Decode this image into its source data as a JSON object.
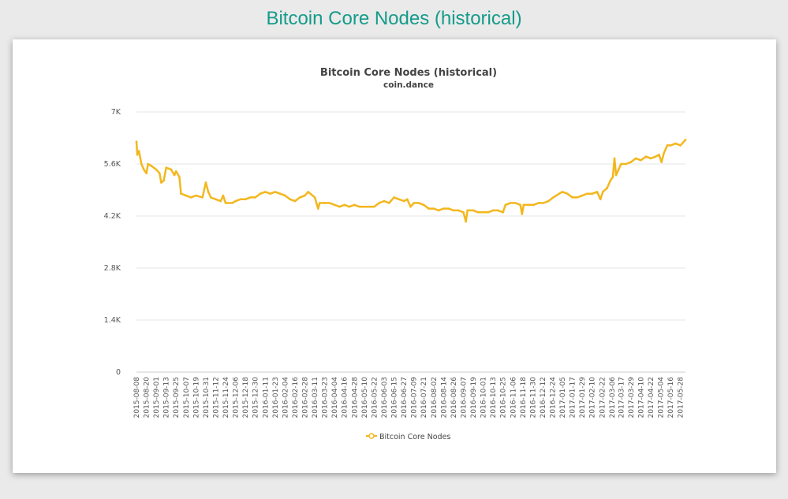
{
  "page": {
    "heading": "Bitcoin Core Nodes (historical)"
  },
  "colors": {
    "heading": "#159b8a",
    "series": "#f3b71e",
    "grid": "#e6e6e6",
    "axis_text": "#555555"
  },
  "chart_data": {
    "type": "line",
    "title": "Bitcoin Core Nodes (historical)",
    "subtitle": "coin.dance",
    "xlabel": "",
    "ylabel": "",
    "ylim": [
      0,
      7000
    ],
    "grid": true,
    "legend_position": "bottom-center",
    "y_ticks": [
      {
        "value": 0,
        "label": "0"
      },
      {
        "value": 1400,
        "label": "1.4K"
      },
      {
        "value": 2800,
        "label": "2.8K"
      },
      {
        "value": 4200,
        "label": "4.2K"
      },
      {
        "value": 5600,
        "label": "5.6K"
      },
      {
        "value": 7000,
        "label": "7K"
      }
    ],
    "x_tick_labels": [
      "2015-08-08",
      "2015-08-20",
      "2015-09-01",
      "2015-09-13",
      "2015-09-25",
      "2015-10-07",
      "2015-10-19",
      "2015-10-31",
      "2015-11-12",
      "2015-11-24",
      "2015-12-06",
      "2015-12-18",
      "2015-12-30",
      "2016-01-11",
      "2016-01-23",
      "2016-02-04",
      "2016-02-16",
      "2016-02-28",
      "2016-03-11",
      "2016-03-23",
      "2016-04-04",
      "2016-04-16",
      "2016-04-28",
      "2016-05-10",
      "2016-05-22",
      "2016-06-03",
      "2016-06-15",
      "2016-06-27",
      "2016-07-09",
      "2016-07-21",
      "2016-08-02",
      "2016-08-14",
      "2016-08-26",
      "2016-09-07",
      "2016-09-19",
      "2016-10-01",
      "2016-10-13",
      "2016-10-25",
      "2016-11-06",
      "2016-11-18",
      "2016-11-30",
      "2016-12-12",
      "2016-12-24",
      "2017-01-05",
      "2017-01-17",
      "2017-01-29",
      "2017-02-10",
      "2017-02-22",
      "2017-03-06",
      "2017-03-17",
      "2017-03-29",
      "2017-04-10",
      "2017-04-22",
      "2017-05-04",
      "2017-05-16",
      "2017-05-28"
    ],
    "series": [
      {
        "name": "Bitcoin Core Nodes",
        "color": "#f3b71e",
        "points": [
          {
            "x": "2015-08-08",
            "y": 6200
          },
          {
            "x": "2015-08-09",
            "y": 5850
          },
          {
            "x": "2015-08-11",
            "y": 5950
          },
          {
            "x": "2015-08-14",
            "y": 5600
          },
          {
            "x": "2015-08-17",
            "y": 5450
          },
          {
            "x": "2015-08-20",
            "y": 5350
          },
          {
            "x": "2015-08-22",
            "y": 5600
          },
          {
            "x": "2015-08-26",
            "y": 5550
          },
          {
            "x": "2015-09-01",
            "y": 5450
          },
          {
            "x": "2015-09-05",
            "y": 5350
          },
          {
            "x": "2015-09-07",
            "y": 5100
          },
          {
            "x": "2015-09-10",
            "y": 5150
          },
          {
            "x": "2015-09-13",
            "y": 5500
          },
          {
            "x": "2015-09-19",
            "y": 5450
          },
          {
            "x": "2015-09-23",
            "y": 5300
          },
          {
            "x": "2015-09-25",
            "y": 5400
          },
          {
            "x": "2015-09-29",
            "y": 5250
          },
          {
            "x": "2015-10-01",
            "y": 4800
          },
          {
            "x": "2015-10-07",
            "y": 4750
          },
          {
            "x": "2015-10-13",
            "y": 4700
          },
          {
            "x": "2015-10-19",
            "y": 4750
          },
          {
            "x": "2015-10-27",
            "y": 4700
          },
          {
            "x": "2015-10-31",
            "y": 5100
          },
          {
            "x": "2015-11-03",
            "y": 4850
          },
          {
            "x": "2015-11-06",
            "y": 4700
          },
          {
            "x": "2015-11-12",
            "y": 4650
          },
          {
            "x": "2015-11-18",
            "y": 4600
          },
          {
            "x": "2015-11-21",
            "y": 4750
          },
          {
            "x": "2015-11-24",
            "y": 4550
          },
          {
            "x": "2015-12-02",
            "y": 4550
          },
          {
            "x": "2015-12-06",
            "y": 4600
          },
          {
            "x": "2015-12-12",
            "y": 4650
          },
          {
            "x": "2015-12-18",
            "y": 4650
          },
          {
            "x": "2015-12-24",
            "y": 4700
          },
          {
            "x": "2015-12-30",
            "y": 4700
          },
          {
            "x": "2016-01-05",
            "y": 4800
          },
          {
            "x": "2016-01-11",
            "y": 4850
          },
          {
            "x": "2016-01-17",
            "y": 4800
          },
          {
            "x": "2016-01-23",
            "y": 4850
          },
          {
            "x": "2016-01-29",
            "y": 4800
          },
          {
            "x": "2016-02-04",
            "y": 4750
          },
          {
            "x": "2016-02-10",
            "y": 4650
          },
          {
            "x": "2016-02-16",
            "y": 4600
          },
          {
            "x": "2016-02-22",
            "y": 4700
          },
          {
            "x": "2016-02-28",
            "y": 4750
          },
          {
            "x": "2016-03-03",
            "y": 4850
          },
          {
            "x": "2016-03-11",
            "y": 4700
          },
          {
            "x": "2016-03-15",
            "y": 4400
          },
          {
            "x": "2016-03-17",
            "y": 4550
          },
          {
            "x": "2016-03-23",
            "y": 4550
          },
          {
            "x": "2016-03-29",
            "y": 4550
          },
          {
            "x": "2016-04-04",
            "y": 4500
          },
          {
            "x": "2016-04-10",
            "y": 4450
          },
          {
            "x": "2016-04-16",
            "y": 4500
          },
          {
            "x": "2016-04-22",
            "y": 4450
          },
          {
            "x": "2016-04-28",
            "y": 4500
          },
          {
            "x": "2016-05-04",
            "y": 4450
          },
          {
            "x": "2016-05-10",
            "y": 4450
          },
          {
            "x": "2016-05-16",
            "y": 4450
          },
          {
            "x": "2016-05-22",
            "y": 4450
          },
          {
            "x": "2016-05-28",
            "y": 4550
          },
          {
            "x": "2016-06-03",
            "y": 4600
          },
          {
            "x": "2016-06-09",
            "y": 4550
          },
          {
            "x": "2016-06-15",
            "y": 4700
          },
          {
            "x": "2016-06-21",
            "y": 4650
          },
          {
            "x": "2016-06-27",
            "y": 4600
          },
          {
            "x": "2016-07-01",
            "y": 4650
          },
          {
            "x": "2016-07-05",
            "y": 4450
          },
          {
            "x": "2016-07-09",
            "y": 4550
          },
          {
            "x": "2016-07-15",
            "y": 4550
          },
          {
            "x": "2016-07-21",
            "y": 4500
          },
          {
            "x": "2016-07-27",
            "y": 4400
          },
          {
            "x": "2016-08-02",
            "y": 4400
          },
          {
            "x": "2016-08-08",
            "y": 4350
          },
          {
            "x": "2016-08-14",
            "y": 4400
          },
          {
            "x": "2016-08-20",
            "y": 4400
          },
          {
            "x": "2016-08-26",
            "y": 4350
          },
          {
            "x": "2016-09-01",
            "y": 4350
          },
          {
            "x": "2016-09-07",
            "y": 4300
          },
          {
            "x": "2016-09-10",
            "y": 4050
          },
          {
            "x": "2016-09-12",
            "y": 4350
          },
          {
            "x": "2016-09-19",
            "y": 4350
          },
          {
            "x": "2016-09-25",
            "y": 4300
          },
          {
            "x": "2016-10-01",
            "y": 4300
          },
          {
            "x": "2016-10-07",
            "y": 4300
          },
          {
            "x": "2016-10-13",
            "y": 4350
          },
          {
            "x": "2016-10-19",
            "y": 4350
          },
          {
            "x": "2016-10-25",
            "y": 4300
          },
          {
            "x": "2016-10-28",
            "y": 4500
          },
          {
            "x": "2016-11-03",
            "y": 4550
          },
          {
            "x": "2016-11-09",
            "y": 4550
          },
          {
            "x": "2016-11-15",
            "y": 4500
          },
          {
            "x": "2016-11-17",
            "y": 4250
          },
          {
            "x": "2016-11-19",
            "y": 4500
          },
          {
            "x": "2016-11-25",
            "y": 4500
          },
          {
            "x": "2016-12-01",
            "y": 4500
          },
          {
            "x": "2016-12-07",
            "y": 4550
          },
          {
            "x": "2016-12-13",
            "y": 4550
          },
          {
            "x": "2016-12-19",
            "y": 4600
          },
          {
            "x": "2016-12-25",
            "y": 4700
          },
          {
            "x": "2017-01-01",
            "y": 4800
          },
          {
            "x": "2017-01-05",
            "y": 4850
          },
          {
            "x": "2017-01-11",
            "y": 4800
          },
          {
            "x": "2017-01-17",
            "y": 4700
          },
          {
            "x": "2017-01-23",
            "y": 4700
          },
          {
            "x": "2017-01-29",
            "y": 4750
          },
          {
            "x": "2017-02-04",
            "y": 4800
          },
          {
            "x": "2017-02-10",
            "y": 4800
          },
          {
            "x": "2017-02-16",
            "y": 4850
          },
          {
            "x": "2017-02-20",
            "y": 4650
          },
          {
            "x": "2017-02-23",
            "y": 4850
          },
          {
            "x": "2017-02-28",
            "y": 4950
          },
          {
            "x": "2017-03-04",
            "y": 5150
          },
          {
            "x": "2017-03-07",
            "y": 5250
          },
          {
            "x": "2017-03-09",
            "y": 5750
          },
          {
            "x": "2017-03-11",
            "y": 5300
          },
          {
            "x": "2017-03-14",
            "y": 5450
          },
          {
            "x": "2017-03-17",
            "y": 5600
          },
          {
            "x": "2017-03-23",
            "y": 5600
          },
          {
            "x": "2017-03-29",
            "y": 5650
          },
          {
            "x": "2017-04-04",
            "y": 5750
          },
          {
            "x": "2017-04-10",
            "y": 5700
          },
          {
            "x": "2017-04-16",
            "y": 5800
          },
          {
            "x": "2017-04-22",
            "y": 5750
          },
          {
            "x": "2017-04-28",
            "y": 5800
          },
          {
            "x": "2017-05-02",
            "y": 5850
          },
          {
            "x": "2017-05-05",
            "y": 5650
          },
          {
            "x": "2017-05-08",
            "y": 5900
          },
          {
            "x": "2017-05-12",
            "y": 6100
          },
          {
            "x": "2017-05-16",
            "y": 6100
          },
          {
            "x": "2017-05-22",
            "y": 6150
          },
          {
            "x": "2017-05-28",
            "y": 6100
          },
          {
            "x": "2017-06-03",
            "y": 6250
          }
        ]
      }
    ]
  }
}
